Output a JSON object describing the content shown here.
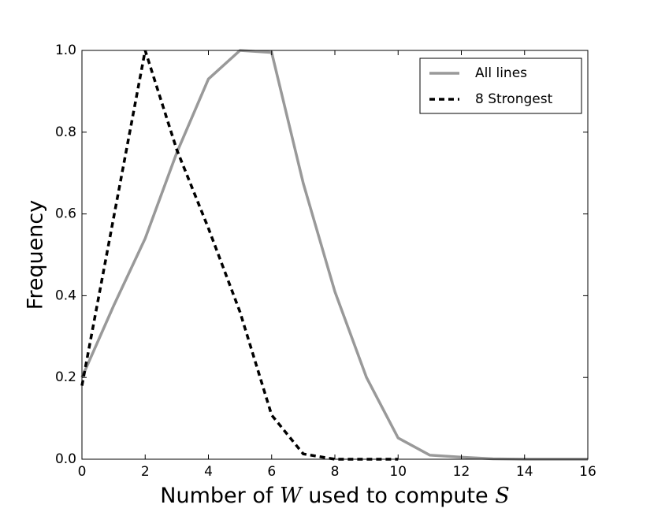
{
  "chart_data": {
    "type": "line",
    "x_label": [
      "Number of ",
      "W",
      " used to compute ",
      "S"
    ],
    "y_label": "Frequency",
    "series": [
      {
        "name": "All lines",
        "color": "#999999",
        "dash": "solid",
        "x": [
          0,
          1,
          2,
          3,
          4,
          5,
          6,
          7,
          8,
          9,
          10,
          11,
          12,
          13,
          14,
          15,
          16
        ],
        "values": [
          0.2,
          0.375,
          0.54,
          0.75,
          0.93,
          1.0,
          0.995,
          0.675,
          0.41,
          0.2,
          0.052,
          0.01,
          0.005,
          0.001,
          0,
          0,
          0
        ]
      },
      {
        "name": "8 Strongest",
        "color": "#000000",
        "dash": "dashed",
        "x": [
          0,
          1,
          2,
          3,
          4,
          5,
          6,
          7,
          8,
          9,
          10
        ],
        "values": [
          0.18,
          0.59,
          1.0,
          0.757,
          0.565,
          0.36,
          0.108,
          0.013,
          0.0,
          0,
          0
        ]
      }
    ],
    "xlim": [
      0,
      16
    ],
    "xticks": [
      0,
      2,
      4,
      6,
      8,
      10,
      12,
      14,
      16
    ],
    "ylim": [
      0,
      1
    ],
    "yticks": [
      {
        "value": 0,
        "label": "0.0"
      },
      0.2,
      0.4,
      0.6,
      0.8,
      {
        "value": 1,
        "label": "1.0"
      }
    ],
    "legend": "upper right",
    "grid": false
  }
}
